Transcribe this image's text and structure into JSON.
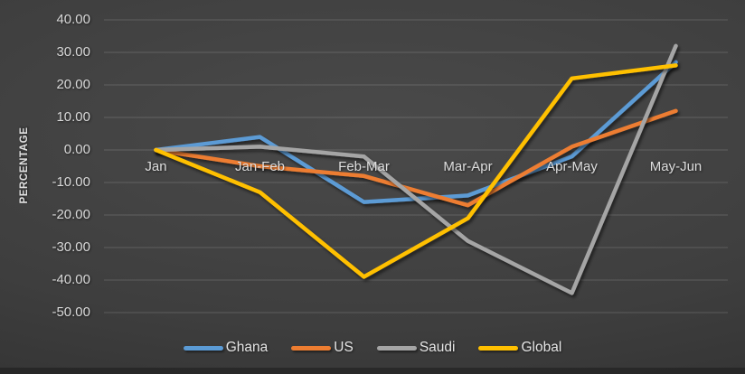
{
  "chart_data": {
    "type": "line",
    "categories": [
      "Jan",
      "Jan-Feb",
      "Feb-Mar",
      "Mar-Apr",
      "Apr-May",
      "May-Jun"
    ],
    "series": [
      {
        "name": "Ghana",
        "color": "#5B9BD5",
        "values": [
          0,
          4,
          -16,
          -14,
          -2,
          27
        ]
      },
      {
        "name": "US",
        "color": "#ED7D31",
        "values": [
          0,
          -5,
          -8,
          -17,
          1,
          12
        ]
      },
      {
        "name": "Saudi",
        "color": "#A5A5A5",
        "values": [
          0,
          1,
          -2,
          -28,
          -44,
          32
        ]
      },
      {
        "name": "Global",
        "color": "#FFC000",
        "values": [
          0,
          -13,
          -39,
          -21,
          22,
          26
        ]
      }
    ],
    "title": "",
    "xlabel": "",
    "ylabel": "PERCENTAGE",
    "ylim": [
      -50,
      40
    ],
    "ytick_step": 10,
    "ytick_labels": [
      "40.00",
      "30.00",
      "20.00",
      "10.00",
      "0.00",
      "-10.00",
      "-20.00",
      "-30.00",
      "-40.00",
      "-50.00"
    ],
    "grid": true,
    "legend_position": "bottom"
  },
  "colors": {
    "background": "#3e3e3e",
    "gridline": "rgba(255,255,255,0.16)",
    "text": "#dedede"
  }
}
